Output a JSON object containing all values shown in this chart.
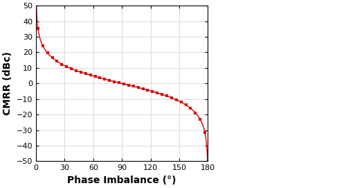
{
  "title": "",
  "xlabel": "Phase Imbalance (°)",
  "ylabel": "CMRR (dBc)",
  "xlim": [
    0,
    180
  ],
  "ylim": [
    -50,
    50
  ],
  "xticks": [
    0,
    30,
    60,
    90,
    120,
    150,
    180
  ],
  "yticks": [
    -50,
    -40,
    -30,
    -20,
    -10,
    0,
    10,
    20,
    30,
    40,
    50
  ],
  "line_color": "#dd0000",
  "marker": "s",
  "marker_size": 3.5,
  "grid_color": "#cccccc",
  "bg_color": "#ffffff",
  "xlabel_fontsize": 10,
  "ylabel_fontsize": 10,
  "tick_fontsize": 8,
  "tick_fontweight": "bold",
  "label_fontweight": "bold"
}
